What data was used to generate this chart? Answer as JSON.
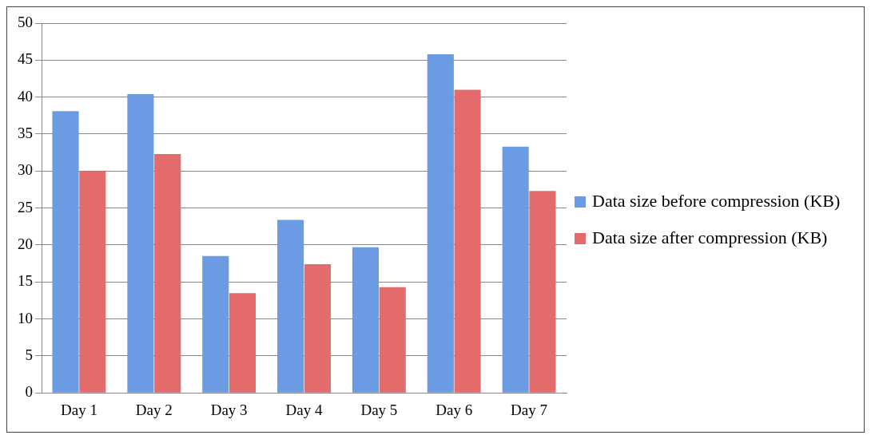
{
  "chart_data": {
    "type": "bar",
    "categories": [
      "Day 1",
      "Day 2",
      "Day 3",
      "Day 4",
      "Day 5",
      "Day 6",
      "Day 7"
    ],
    "series": [
      {
        "name": "Data size before compression (KB)",
        "color": "#6a9be3",
        "values": [
          38.1,
          40.4,
          18.5,
          23.4,
          19.7,
          45.8,
          33.3
        ]
      },
      {
        "name": "Data size after compression (KB)",
        "color": "#e36b6b",
        "values": [
          30.0,
          32.3,
          13.5,
          17.4,
          14.3,
          41.0,
          27.3
        ]
      }
    ],
    "ylim": [
      0,
      50
    ],
    "yticks": [
      0,
      5,
      10,
      15,
      20,
      25,
      30,
      35,
      40,
      45,
      50
    ],
    "grid": "y",
    "legend": "right"
  }
}
